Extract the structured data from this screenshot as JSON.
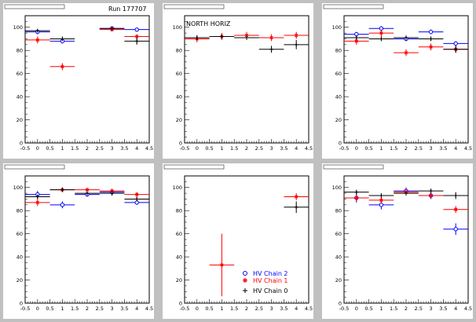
{
  "run_label": "Run 177707",
  "colors": {
    "chain2": "#0000ff",
    "chain1": "#ff0000",
    "chain0": "#000000",
    "background": "#c0c0c0"
  },
  "legend": [
    {
      "name": "HV Chain 2",
      "color": "#0000ff",
      "marker": "open-circle"
    },
    {
      "name": "HV Chain 1",
      "color": "#ff0000",
      "marker": "star"
    },
    {
      "name": "HV Chain 0",
      "color": "#000000",
      "marker": "plus"
    }
  ],
  "axis": {
    "xlim": [
      -0.5,
      4.5
    ],
    "ylim": [
      0,
      110
    ],
    "xticks": [
      "-0.5",
      "0",
      "0.5",
      "1",
      "1.5",
      "2",
      "2.5",
      "3",
      "3.5",
      "4",
      "4.5"
    ],
    "yticks": [
      "0",
      "20",
      "40",
      "60",
      "80",
      "100"
    ],
    "grid": false
  },
  "chart_data": [
    {
      "type": "scatter",
      "title": "",
      "series": [
        {
          "name": "HV Chain 2",
          "x": [
            0,
            1,
            3,
            4
          ],
          "y": [
            96,
            88,
            99,
            98
          ],
          "yerr": [
            2,
            2,
            1,
            1
          ]
        },
        {
          "name": "HV Chain 1",
          "x": [
            0,
            1,
            3,
            4
          ],
          "y": [
            89,
            66,
            98,
            92
          ],
          "yerr": [
            3,
            3,
            1,
            2
          ]
        },
        {
          "name": "HV Chain 0",
          "x": [
            0,
            1,
            3,
            4
          ],
          "y": [
            97,
            90,
            99,
            88
          ],
          "yerr": [
            1,
            2,
            1,
            3
          ]
        }
      ]
    },
    {
      "type": "scatter",
      "title": "NORTH HORIZ",
      "series": [
        {
          "name": "HV Chain 2",
          "x": [],
          "y": [],
          "yerr": []
        },
        {
          "name": "HV Chain 1",
          "x": [
            0,
            1,
            2,
            3,
            4
          ],
          "y": [
            90,
            92,
            93,
            91,
            93
          ],
          "yerr": [
            3,
            3,
            3,
            3,
            3
          ]
        },
        {
          "name": "HV Chain 0",
          "x": [
            0,
            1,
            2,
            3,
            4
          ],
          "y": [
            91,
            92,
            91,
            81,
            85
          ],
          "yerr": [
            2,
            2,
            2,
            3,
            4
          ]
        }
      ]
    },
    {
      "type": "scatter",
      "title": "",
      "series": [
        {
          "name": "HV Chain 2",
          "x": [
            0,
            1,
            2,
            3,
            4
          ],
          "y": [
            94,
            99,
            90,
            96,
            86
          ],
          "yerr": [
            2,
            2,
            2,
            2,
            2
          ]
        },
        {
          "name": "HV Chain 1",
          "x": [
            0,
            1,
            2,
            3,
            4
          ],
          "y": [
            88,
            95,
            78,
            83,
            81
          ],
          "yerr": [
            3,
            3,
            3,
            3,
            3
          ]
        },
        {
          "name": "HV Chain 0",
          "x": [
            0,
            1,
            2,
            3,
            4
          ],
          "y": [
            91,
            90,
            91,
            90,
            81
          ],
          "yerr": [
            2,
            2,
            2,
            2,
            3
          ]
        }
      ]
    },
    {
      "type": "scatter",
      "title": "",
      "series": [
        {
          "name": "HV Chain 2",
          "x": [
            0,
            1,
            2,
            3,
            4
          ],
          "y": [
            94,
            85,
            94,
            96,
            87
          ],
          "yerr": [
            3,
            3,
            2,
            2,
            2
          ]
        },
        {
          "name": "HV Chain 1",
          "x": [
            0,
            1,
            2,
            3,
            4
          ],
          "y": [
            87,
            98,
            98,
            97,
            94
          ],
          "yerr": [
            3,
            2,
            2,
            2,
            2
          ]
        },
        {
          "name": "HV Chain 0",
          "x": [
            0,
            1,
            2,
            3,
            4
          ],
          "y": [
            92,
            98,
            95,
            95,
            90
          ],
          "yerr": [
            2,
            2,
            2,
            2,
            2
          ]
        }
      ]
    },
    {
      "type": "scatter",
      "title": "",
      "series": [
        {
          "name": "HV Chain 2",
          "x": [],
          "y": [],
          "yerr": []
        },
        {
          "name": "HV Chain 1",
          "x": [
            1,
            4
          ],
          "y": [
            33,
            92
          ],
          "yerr": [
            27,
            3
          ]
        },
        {
          "name": "HV Chain 0",
          "x": [
            4
          ],
          "y": [
            83
          ],
          "yerr": [
            5
          ]
        }
      ]
    },
    {
      "type": "scatter",
      "title": "",
      "series": [
        {
          "name": "HV Chain 2",
          "x": [
            0,
            1,
            2,
            3,
            4
          ],
          "y": [
            91,
            85,
            97,
            93,
            64
          ],
          "yerr": [
            4,
            4,
            3,
            3,
            5
          ]
        },
        {
          "name": "HV Chain 1",
          "x": [
            0,
            1,
            2,
            3,
            4
          ],
          "y": [
            91,
            89,
            96,
            93,
            81
          ],
          "yerr": [
            3,
            3,
            2,
            2,
            3
          ]
        },
        {
          "name": "HV Chain 0",
          "x": [
            0,
            1,
            2,
            3,
            4
          ],
          "y": [
            96,
            93,
            95,
            97,
            93
          ],
          "yerr": [
            2,
            2,
            2,
            2,
            3
          ]
        }
      ]
    }
  ]
}
